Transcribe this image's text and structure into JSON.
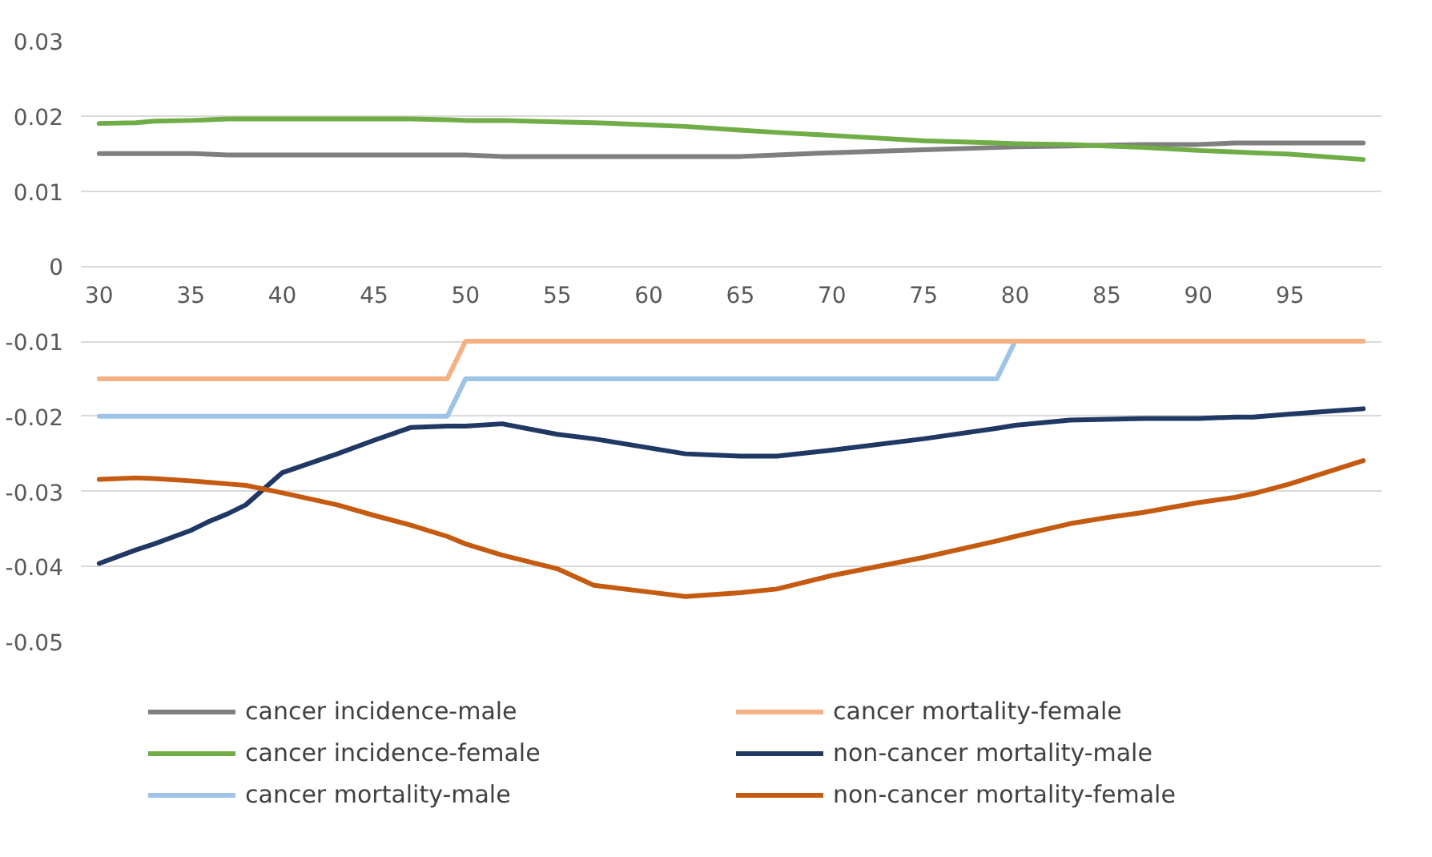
{
  "chart_data": {
    "type": "line",
    "x": [
      30,
      32,
      33,
      35,
      36,
      37,
      38,
      40,
      43,
      45,
      47,
      49,
      50,
      52,
      55,
      57,
      60,
      62,
      65,
      67,
      70,
      75,
      79,
      80,
      83,
      85,
      87,
      90,
      92,
      93,
      95,
      99
    ],
    "xlim": [
      29,
      100
    ],
    "xticks": [
      30,
      35,
      40,
      45,
      50,
      55,
      60,
      65,
      70,
      75,
      80,
      85,
      90,
      95
    ],
    "ylim": [
      -0.05,
      0.03
    ],
    "yticks": [
      -0.05,
      -0.04,
      -0.03,
      -0.02,
      -0.01,
      0,
      0.01,
      0.02,
      0.03
    ],
    "grid": "y",
    "legend": "bottom",
    "marker": "none",
    "line_style": "solid",
    "series": [
      {
        "name": "cancer incidence-male",
        "color": "#7f7f7f",
        "values": [
          0.015,
          0.015,
          0.015,
          0.015,
          0.0149,
          0.0148,
          0.0148,
          0.0148,
          0.0148,
          0.0148,
          0.0148,
          0.0148,
          0.0148,
          0.0146,
          0.0146,
          0.0146,
          0.0146,
          0.0146,
          0.0146,
          0.0148,
          0.0151,
          0.0155,
          0.0158,
          0.0159,
          0.016,
          0.0161,
          0.0162,
          0.0162,
          0.0164,
          0.0164,
          0.0164,
          0.0164
        ]
      },
      {
        "name": "cancer incidence-female",
        "color": "#70ad47",
        "values": [
          0.019,
          0.0191,
          0.0193,
          0.0194,
          0.0195,
          0.0196,
          0.0196,
          0.0196,
          0.0196,
          0.0196,
          0.0196,
          0.0195,
          0.0194,
          0.0194,
          0.0192,
          0.0191,
          0.0188,
          0.0186,
          0.0181,
          0.0178,
          0.0174,
          0.0167,
          0.0164,
          0.0163,
          0.0162,
          0.016,
          0.0158,
          0.0154,
          0.0152,
          0.0151,
          0.0149,
          0.0142
        ]
      },
      {
        "name": "cancer mortality-male",
        "color": "#9dc3e6",
        "values": [
          -0.02,
          -0.02,
          -0.02,
          -0.02,
          -0.02,
          -0.02,
          -0.02,
          -0.02,
          -0.02,
          -0.02,
          -0.02,
          -0.02,
          -0.015,
          -0.015,
          -0.015,
          -0.015,
          -0.015,
          -0.015,
          -0.015,
          -0.015,
          -0.015,
          -0.015,
          -0.015,
          -0.01,
          null,
          null,
          null,
          null,
          null,
          null,
          null,
          null
        ]
      },
      {
        "name": "cancer mortality-female",
        "color": "#f4b183",
        "values": [
          -0.015,
          -0.015,
          -0.015,
          -0.015,
          -0.015,
          -0.015,
          -0.015,
          -0.015,
          -0.015,
          -0.015,
          -0.015,
          -0.015,
          -0.01,
          -0.01,
          -0.01,
          -0.01,
          -0.01,
          -0.01,
          -0.01,
          -0.01,
          -0.01,
          -0.01,
          -0.01,
          -0.01,
          -0.01,
          -0.01,
          -0.01,
          -0.01,
          -0.01,
          -0.01,
          -0.01,
          -0.01
        ]
      },
      {
        "name": "non-cancer mortality-male",
        "color": "#203864",
        "values": [
          -0.0396,
          -0.0378,
          -0.037,
          -0.0352,
          -0.034,
          -0.033,
          -0.0318,
          -0.0275,
          -0.025,
          -0.0232,
          -0.0215,
          -0.0213,
          -0.0213,
          -0.021,
          -0.0224,
          -0.023,
          -0.0242,
          -0.025,
          -0.0253,
          -0.0253,
          -0.0245,
          -0.023,
          -0.0216,
          -0.0212,
          -0.0205,
          -0.0204,
          -0.0203,
          -0.0203,
          -0.0201,
          -0.0201,
          -0.0197,
          -0.019
        ]
      },
      {
        "name": "non-cancer mortality-female",
        "color": "#c55a11",
        "values": [
          -0.0284,
          -0.0282,
          -0.0283,
          -0.0286,
          -0.0288,
          -0.029,
          -0.0292,
          -0.0302,
          -0.0318,
          -0.0332,
          -0.0345,
          -0.036,
          -0.037,
          -0.0385,
          -0.0403,
          -0.0425,
          -0.0434,
          -0.044,
          -0.0435,
          -0.043,
          -0.0412,
          -0.0388,
          -0.0366,
          -0.036,
          -0.0343,
          -0.0335,
          -0.0328,
          -0.0315,
          -0.0308,
          -0.0303,
          -0.029,
          -0.0259
        ]
      }
    ]
  }
}
